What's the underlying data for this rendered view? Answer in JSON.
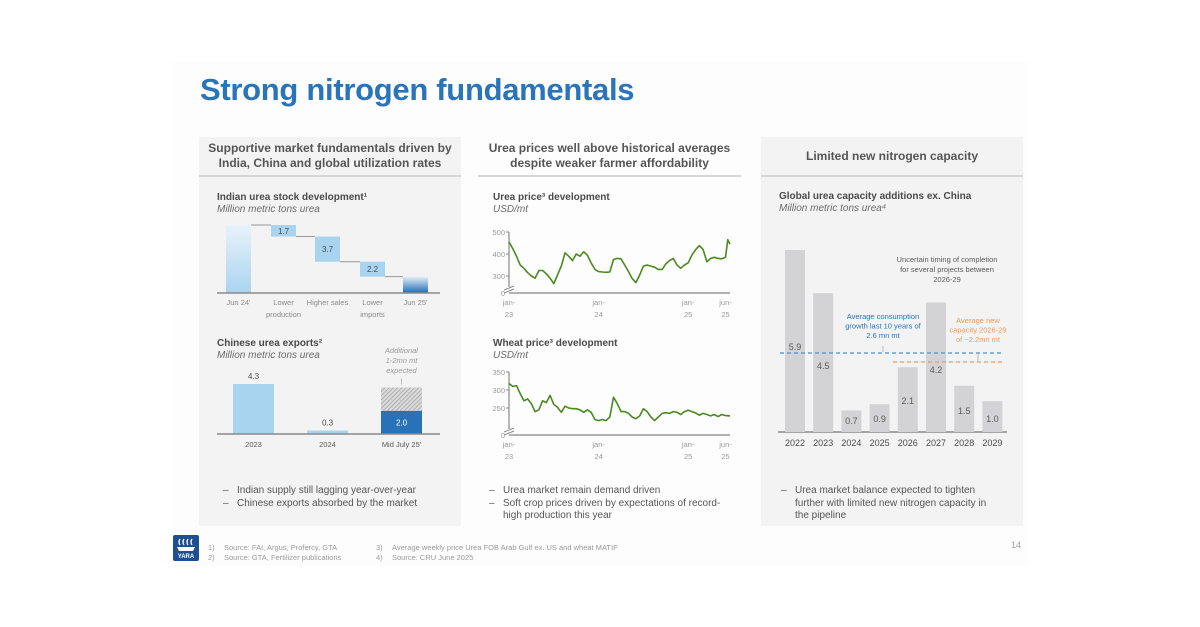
{
  "title": "Strong nitrogen fundamentals",
  "panels": [
    {
      "header": [
        "Supportive market fundamentals driven by",
        "India, China and global utilization rates"
      ],
      "bullets": [
        "Indian supply still lagging year-over-year",
        "Chinese exports absorbed by the market"
      ]
    },
    {
      "header": [
        "Urea prices well above historical averages",
        "despite weaker farmer affordability"
      ],
      "bullets": [
        "Urea market remain demand driven",
        "Soft crop prices driven by expectations of record-high production this year"
      ]
    },
    {
      "header": [
        "Limited new nitrogen capacity"
      ],
      "bullets": [
        "Urea market balance expected to tighten further with limited new nitrogen capacity in the pipeline"
      ]
    }
  ],
  "footnotes": [
    {
      "num": "1)",
      "text": "Source: FAI, Argus, Profercy, GTA"
    },
    {
      "num": "2)",
      "text": "Source: GTA, Fertilizer publications"
    },
    {
      "num": "3)",
      "text": "Average weekly price Urea FOB Arab Gulf ex. US and wheat MATIF"
    },
    {
      "num": "4)",
      "text": "Source: CRU June 2025"
    }
  ],
  "page_number": "14",
  "logo_text": "YARA",
  "colors": {
    "title": "#2a74b9",
    "light_blue": "#a9d4f0",
    "dark_blue": "#2a72b8",
    "green": "#4a8a1f",
    "grey_bar": "#d3d3d5",
    "orange": "#f29a55",
    "dash_blue": "#4a90d0"
  },
  "chart_data": [
    {
      "type": "bar",
      "subtype": "waterfall",
      "title": "Indian urea stock development¹",
      "subtitle": "Million metric tons urea",
      "categories": [
        "Jun 24'",
        "Lower production",
        "Higher sales",
        "Lower imports",
        "Jun 25'"
      ],
      "category_lines": [
        [
          "Jun 24'"
        ],
        [
          "Lower",
          "production"
        ],
        [
          "Higher sales"
        ],
        [
          "Lower",
          "imports"
        ],
        [
          "Jun 25'"
        ]
      ],
      "values": [
        null,
        -1.7,
        -3.7,
        -2.2,
        null
      ],
      "labels": [
        "",
        "1.7",
        "3.7",
        "2.2",
        ""
      ],
      "start_end_unlabeled": true
    },
    {
      "type": "bar",
      "title": "Chinese urea exports²",
      "subtitle": "Million metric tons urea",
      "categories": [
        "2023",
        "2024",
        "Mid July 25'"
      ],
      "values": [
        4.3,
        0.3,
        2.0
      ],
      "labels": [
        "4.3",
        "0.3",
        "2.0"
      ],
      "expected_additional_range": [
        1,
        2
      ],
      "annotation": [
        "Additional",
        "1-2mn mt",
        "expected"
      ]
    },
    {
      "type": "line",
      "title": "Urea price³ development",
      "subtitle": "USD/mt",
      "yticks": [
        "0",
        "300",
        "400",
        "500"
      ],
      "ylim": [
        0,
        500
      ],
      "axis_break": true,
      "xticks": [
        [
          "jan-",
          "23"
        ],
        [
          "jan-",
          "24"
        ],
        [
          "jan-",
          "25"
        ],
        [
          "jun-",
          "25"
        ]
      ],
      "xtick_months": [
        0,
        12,
        24,
        29
      ],
      "x_months": [
        0,
        0.5,
        1,
        1.5,
        2,
        2.5,
        3,
        3.5,
        4,
        4.5,
        5,
        5.5,
        6,
        6.5,
        7,
        7.5,
        8,
        8.5,
        9,
        9.5,
        10,
        10.5,
        11,
        11.5,
        12,
        12.5,
        13,
        13.5,
        14,
        14.5,
        15,
        15.5,
        16,
        16.5,
        17,
        17.5,
        18,
        18.5,
        19,
        19.5,
        20,
        20.5,
        21,
        21.5,
        22,
        22.5,
        23,
        23.5,
        24,
        24.5,
        25,
        25.5,
        26,
        26.5,
        27,
        27.5,
        28,
        28.5,
        29,
        29.3,
        29.6
      ],
      "y": [
        455,
        425,
        390,
        350,
        335,
        315,
        300,
        290,
        325,
        325,
        310,
        290,
        265,
        305,
        345,
        405,
        390,
        370,
        400,
        390,
        410,
        395,
        360,
        330,
        320,
        318,
        317,
        318,
        375,
        380,
        378,
        350,
        320,
        288,
        270,
        305,
        345,
        350,
        345,
        340,
        330,
        330,
        355,
        370,
        380,
        350,
        335,
        350,
        360,
        395,
        420,
        438,
        420,
        365,
        380,
        385,
        380,
        378,
        385,
        465,
        445
      ]
    },
    {
      "type": "line",
      "title": "Wheat price³ development",
      "subtitle": "USD/mt",
      "yticks": [
        "0",
        "250",
        "300",
        "350"
      ],
      "ylim": [
        0,
        350
      ],
      "axis_break": true,
      "xticks": [
        [
          "jan-",
          "23"
        ],
        [
          "jan-",
          "24"
        ],
        [
          "jan-",
          "25"
        ],
        [
          "jun-",
          "25"
        ]
      ],
      "xtick_months": [
        0,
        12,
        24,
        29
      ],
      "x_months": [
        0,
        0.5,
        1,
        1.5,
        2,
        2.5,
        3,
        3.5,
        4,
        4.5,
        5,
        5.5,
        6,
        6.5,
        7,
        7.5,
        8,
        8.5,
        9,
        9.5,
        10,
        10.5,
        11,
        11.5,
        12,
        12.5,
        13,
        13.5,
        14,
        14.5,
        15,
        15.5,
        16,
        16.5,
        17,
        17.5,
        18,
        18.5,
        19,
        19.5,
        20,
        20.5,
        21,
        21.5,
        22,
        22.5,
        23,
        23.5,
        24,
        24.5,
        25,
        25.5,
        26,
        26.5,
        27,
        27.5,
        28,
        28.5,
        29,
        29.6
      ],
      "y": [
        318,
        310,
        312,
        290,
        270,
        275,
        262,
        240,
        245,
        270,
        265,
        285,
        260,
        252,
        238,
        255,
        250,
        248,
        248,
        245,
        238,
        245,
        238,
        218,
        215,
        218,
        215,
        225,
        280,
        262,
        240,
        240,
        235,
        225,
        220,
        228,
        248,
        240,
        225,
        215,
        225,
        235,
        237,
        235,
        240,
        238,
        232,
        240,
        244,
        240,
        236,
        230,
        235,
        232,
        228,
        232,
        226,
        232,
        229,
        228
      ]
    },
    {
      "type": "bar",
      "title": "Global urea capacity additions ex. China",
      "subtitle": "Million metric tons urea⁴",
      "categories": [
        "2022",
        "2023",
        "2024",
        "2025",
        "2026",
        "2027",
        "2028",
        "2029"
      ],
      "values": [
        5.9,
        4.5,
        0.7,
        0.9,
        2.1,
        4.2,
        1.5,
        1.0
      ],
      "labels": [
        "5.9",
        "4.5",
        "0.7",
        "0.9",
        "2.1",
        "4.2",
        "1.5",
        "1.0"
      ],
      "reference_lines": [
        {
          "name": "Average consumption growth last 10 years of 2.6 mn mt",
          "value": 2.6,
          "text": [
            "Average consumption",
            "growth last 10 years of",
            "2.6 mn mt"
          ]
        },
        {
          "name": "Average new capacity 2026-29 of ~2.2mn mt",
          "value": 2.2,
          "text": [
            "Average new",
            "capacity 2026-29",
            "of ~2.2mn mt"
          ]
        }
      ],
      "annotation": [
        "Uncertain timing of completion",
        "for several projects between",
        "2026-29"
      ]
    }
  ]
}
